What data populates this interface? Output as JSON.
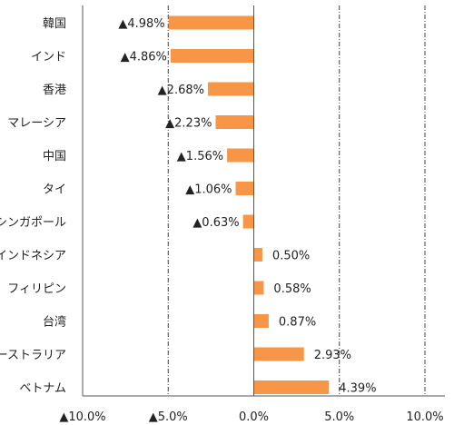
{
  "chart_data": {
    "type": "bar",
    "orientation": "horizontal",
    "categories": [
      "韓国",
      "インド",
      "香港",
      "マレーシア",
      "中国",
      "タイ",
      "シンガポール",
      "インドネシア",
      "フィリピン",
      "台湾",
      "オーストラリア",
      "ベトナム"
    ],
    "values": [
      -4.98,
      -4.86,
      -2.68,
      -2.23,
      -1.56,
      -1.06,
      -0.63,
      0.5,
      0.58,
      0.87,
      2.93,
      4.39
    ],
    "data_labels": [
      "▲4.98%",
      "▲4.86%",
      "▲2.68%",
      "▲2.23%",
      "▲1.56%",
      "▲1.06%",
      "▲0.63%",
      "0.50%",
      "0.58%",
      "0.87%",
      "2.93%",
      "4.39%"
    ],
    "x_ticks": [
      -10,
      -5,
      0,
      5,
      10
    ],
    "x_tick_labels": [
      "▲10.0%",
      "▲5.0%",
      "0.0%",
      "5.0%",
      "10.0%"
    ],
    "xlim": [
      -10,
      10
    ],
    "bar_color": "#f79646",
    "gridlines": "vertical dash-dot at major ticks",
    "legend": "none",
    "title": "",
    "xlabel": "",
    "ylabel": ""
  }
}
